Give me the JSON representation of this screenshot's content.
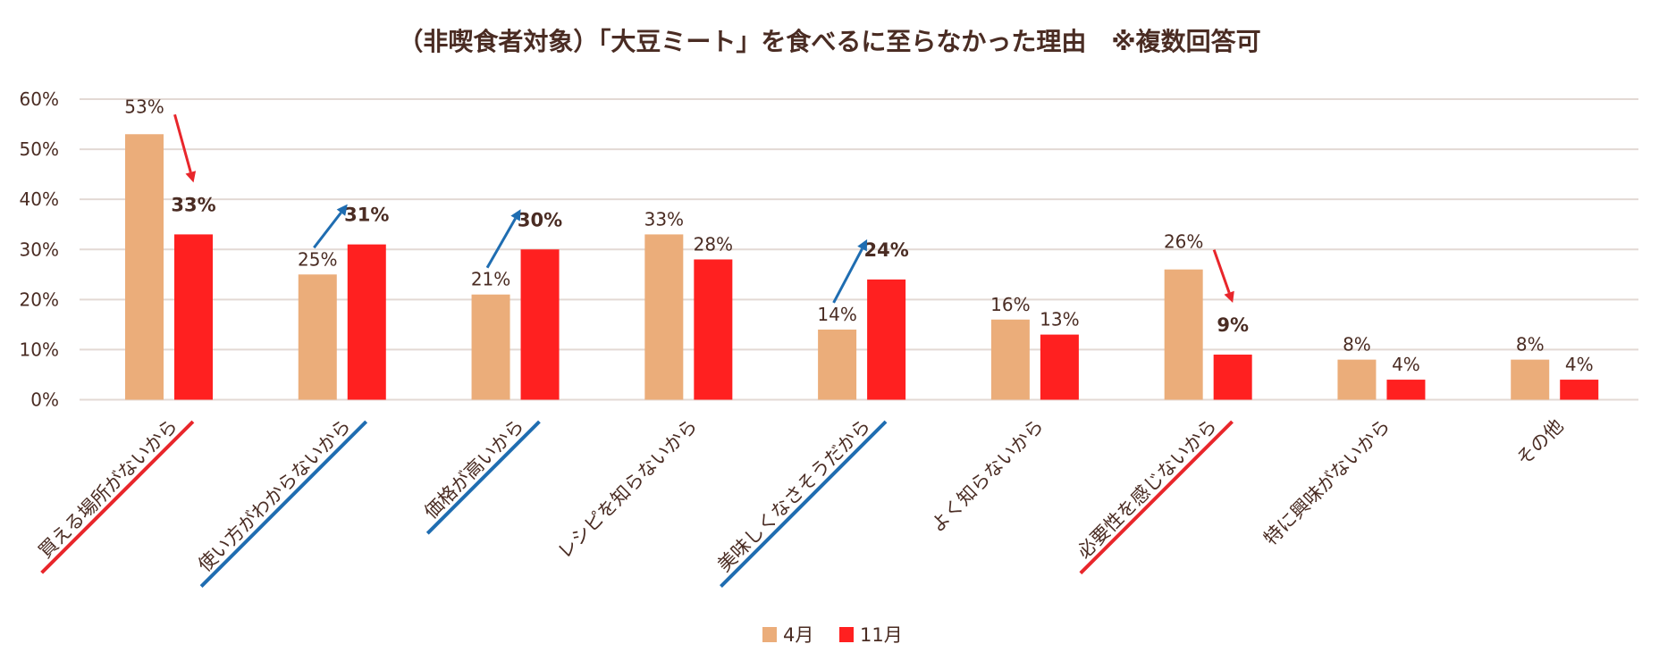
{
  "chart_data": {
    "type": "bar",
    "title": "（非喫食者対象）「大豆ミート」を食べるに至らなかった理由　※複数回答可",
    "xlabel": "",
    "ylabel": "",
    "ylim": [
      0,
      60
    ],
    "yticks": [
      "0%",
      "10%",
      "20%",
      "30%",
      "40%",
      "50%",
      "60%"
    ],
    "grid": true,
    "legend_position": "bottom",
    "categories": [
      "買える場所がないから",
      "使い方がわからないから",
      "価格が高いから",
      "レシピを知らないから",
      "美味しくなさそうだから",
      "よく知らないから",
      "必要性を感じないから",
      "特に興味がないから",
      "その他"
    ],
    "series": [
      {
        "name": "4月",
        "color": "#EBAD7A",
        "values": [
          53,
          25,
          21,
          33,
          14,
          16,
          26,
          8,
          8
        ],
        "labels": [
          "53%",
          "25%",
          "21%",
          "33%",
          "14%",
          "16%",
          "26%",
          "8%",
          "8%"
        ]
      },
      {
        "name": "11月",
        "color": "#FF2020",
        "values": [
          33,
          31,
          30,
          28,
          24,
          13,
          9,
          4,
          4
        ],
        "labels": [
          "33%",
          "31%",
          "30%",
          "28%",
          "24%",
          "13%",
          "9%",
          "4%",
          "4%"
        ]
      }
    ],
    "highlights": [
      "down",
      "up",
      "up",
      "none",
      "up",
      "none",
      "down",
      "none",
      "none"
    ],
    "highlight_colors": {
      "down": "#E8262B",
      "up": "#1F6DB1"
    }
  }
}
